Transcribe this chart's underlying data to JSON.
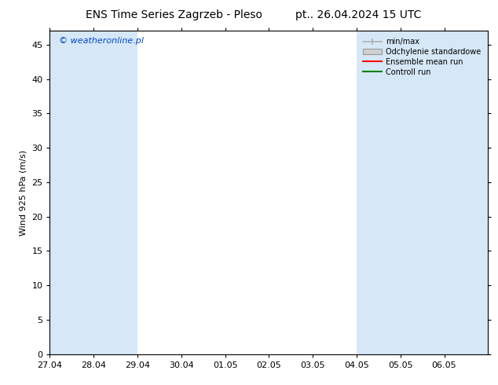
{
  "title": "ENS Time Series Zagrzeb - Pleso",
  "subtitle": "pt.. 26.04.2024 15 UTC",
  "ylabel": "Wind 925 hPa (m/s)",
  "watermark": "© weatheronline.pl",
  "xlim_start": 0,
  "xlim_end": 10,
  "ylim": [
    0,
    47
  ],
  "yticks": [
    0,
    5,
    10,
    15,
    20,
    25,
    30,
    35,
    40,
    45
  ],
  "xtick_labels": [
    "27.04",
    "28.04",
    "29.04",
    "30.04",
    "01.05",
    "02.05",
    "03.05",
    "04.05",
    "05.05",
    "06.05"
  ],
  "shade_bands": [
    [
      0,
      1
    ],
    [
      1,
      2
    ],
    [
      7,
      8
    ],
    [
      8,
      9
    ],
    [
      9,
      10
    ]
  ],
  "shade_color": "#d6e8f7",
  "bg_color": "#ffffff",
  "legend_items": [
    {
      "label": "min/max",
      "color": "#b0b0b0",
      "type": "hline"
    },
    {
      "label": "Odchylenie standardowe",
      "color": "#d0d0d0",
      "type": "box"
    },
    {
      "label": "Ensemble mean run",
      "color": "#ff0000",
      "type": "line"
    },
    {
      "label": "Controll run",
      "color": "#008000",
      "type": "line"
    }
  ],
  "title_fontsize": 10,
  "subtitle_fontsize": 10,
  "tick_fontsize": 8,
  "ylabel_fontsize": 8,
  "watermark_fontsize": 8,
  "legend_fontsize": 7
}
